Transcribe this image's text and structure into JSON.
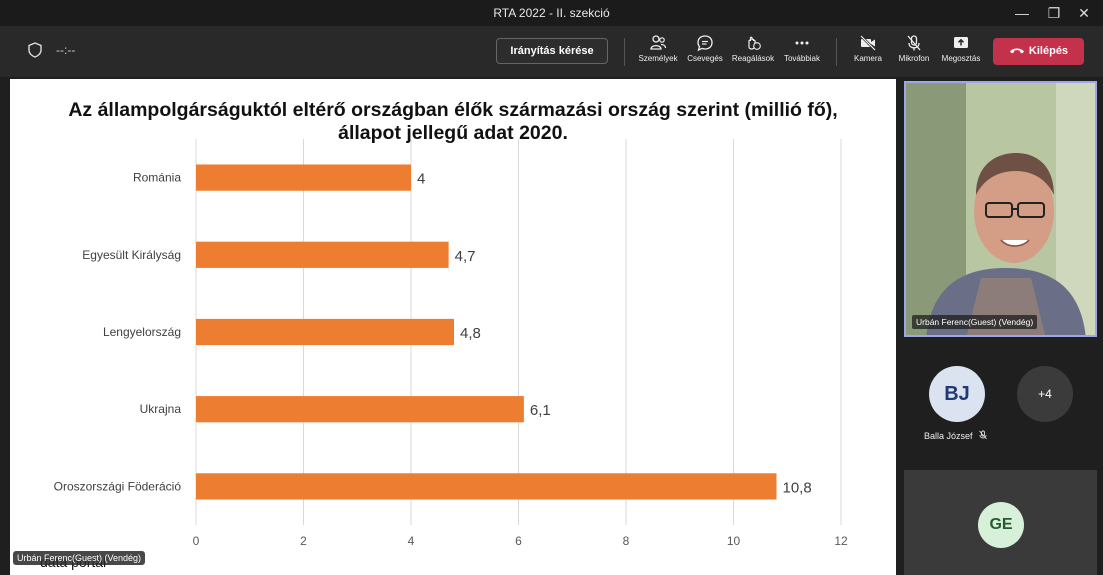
{
  "window": {
    "title": "RTA 2022 - II. szekció",
    "controls": [
      "—",
      "❐",
      "✕"
    ]
  },
  "toolbar": {
    "timer": "--:--",
    "request_control_label": "Irányítás kérése",
    "tools": [
      {
        "name": "people",
        "label": "Személyek"
      },
      {
        "name": "chat",
        "label": "Csevegés"
      },
      {
        "name": "reactions",
        "label": "Reagálások"
      },
      {
        "name": "more",
        "label": "Továbbiak"
      },
      {
        "name": "camera",
        "label": "Kamera"
      },
      {
        "name": "mic",
        "label": "Mikrofon"
      },
      {
        "name": "share",
        "label": "Megosztás"
      }
    ],
    "leave_label": "Kilépés",
    "leave_color": "#c4314b"
  },
  "slide": {
    "footer_text": "data portal",
    "presenter_tag": "Urbán Ferenc(Guest) (Vendég)"
  },
  "chart_data": {
    "type": "bar",
    "orientation": "horizontal",
    "title_lines": [
      "Az állampolgárságuktól eltérő országban élők származási ország szerint (millió fő),",
      "állapot jellegű adat 2020."
    ],
    "categories": [
      "Románia",
      "Egyesült Királyság",
      "Lengyelország",
      "Ukrajna",
      "Oroszországi Föderáció"
    ],
    "values": [
      4,
      4.7,
      4.8,
      6.1,
      10.8
    ],
    "value_labels": [
      "4",
      "4,7",
      "4,8",
      "6,1",
      "10,8"
    ],
    "xticks": [
      "0",
      "2",
      "4",
      "6",
      "8",
      "10",
      "12"
    ],
    "xlim": [
      0,
      12
    ],
    "bar_color": "#ed7d31",
    "grid": true,
    "legend": "none"
  },
  "participants": {
    "main_video_name": "Urbán Ferenc(Guest) (Vendég)",
    "bj_initials": "BJ",
    "bj_name": "Balla József",
    "others_count": "+4",
    "ge_initials": "GE"
  }
}
